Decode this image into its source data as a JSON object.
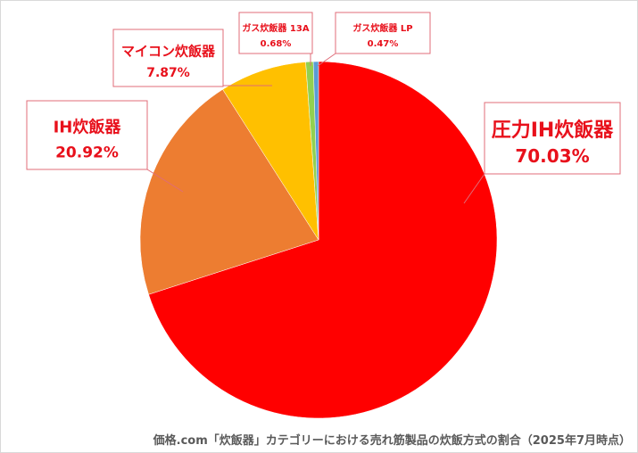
{
  "chart_data": {
    "type": "pie",
    "title": "",
    "caption": "価格.com「炊飯器」カテゴリーにおける売れ筋製品の炊飯方式の割合（2025年7月時点）",
    "start": "top",
    "direction": "clockwise",
    "slices": [
      {
        "label": "圧力IH炊飯器",
        "value": 70.03,
        "value_label": "70.03%",
        "color": "#FF0000"
      },
      {
        "label": "IH炊飯器",
        "value": 20.92,
        "value_label": "20.92%",
        "color": "#ED7D31"
      },
      {
        "label": "マイコン炊飯器",
        "value": 7.87,
        "value_label": "7.87%",
        "color": "#FFC000"
      },
      {
        "label": "ガス炊飯器 13A",
        "value": 0.68,
        "value_label": "0.68%",
        "color": "#92D050"
      },
      {
        "label": "ガス炊飯器 LP",
        "value": 0.47,
        "value_label": "0.47%",
        "color": "#5B9BD5"
      }
    ],
    "label_color": "#E8101B",
    "callout_border": "#E06C78"
  }
}
